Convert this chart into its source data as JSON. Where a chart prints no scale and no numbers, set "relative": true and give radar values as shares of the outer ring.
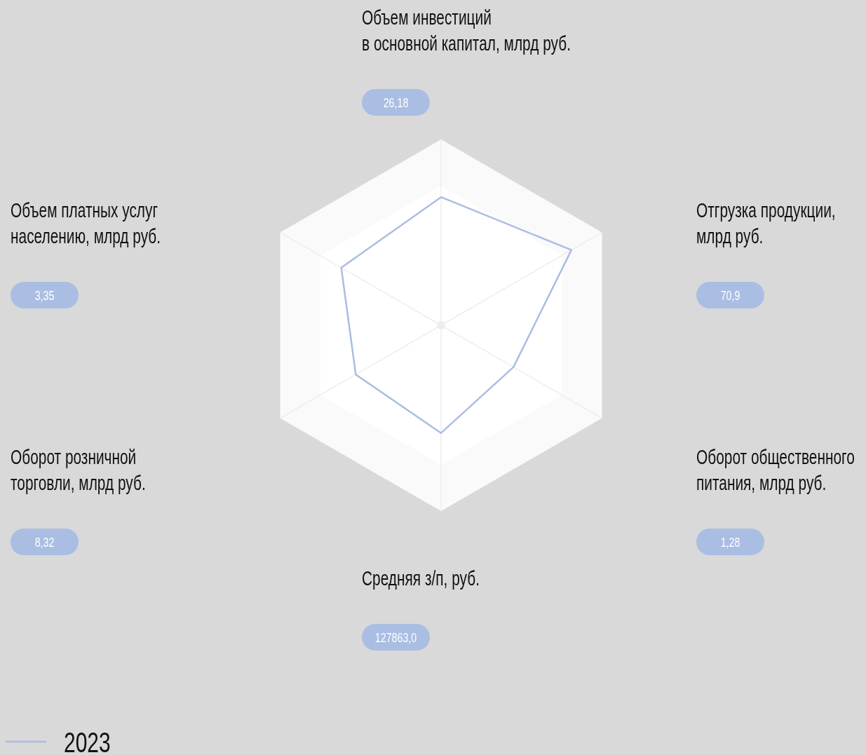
{
  "chart_data": {
    "type": "radar",
    "relative": true,
    "categories": [
      "Объем инвестиций\nв основной капитал, млрд руб.",
      "Отгрузка продукции,\nмлрд руб.",
      "Оборот общественного\nпитания, млрд руб.",
      "Средняя з/п, руб.",
      "Оборот розничной\nторговли, млрд руб.",
      "Объем платных услуг\nнаселению, млрд руб."
    ],
    "series": [
      {
        "name": "2023",
        "color": "#aabde3",
        "values": [
          0.69,
          0.81,
          0.45,
          0.58,
          0.53,
          0.62
        ]
      }
    ],
    "annotations": [
      "26,18",
      "70,9",
      "1,28",
      "127863,0",
      "8,32",
      "3,35"
    ],
    "legend": "bottom left",
    "marker": "none"
  }
}
